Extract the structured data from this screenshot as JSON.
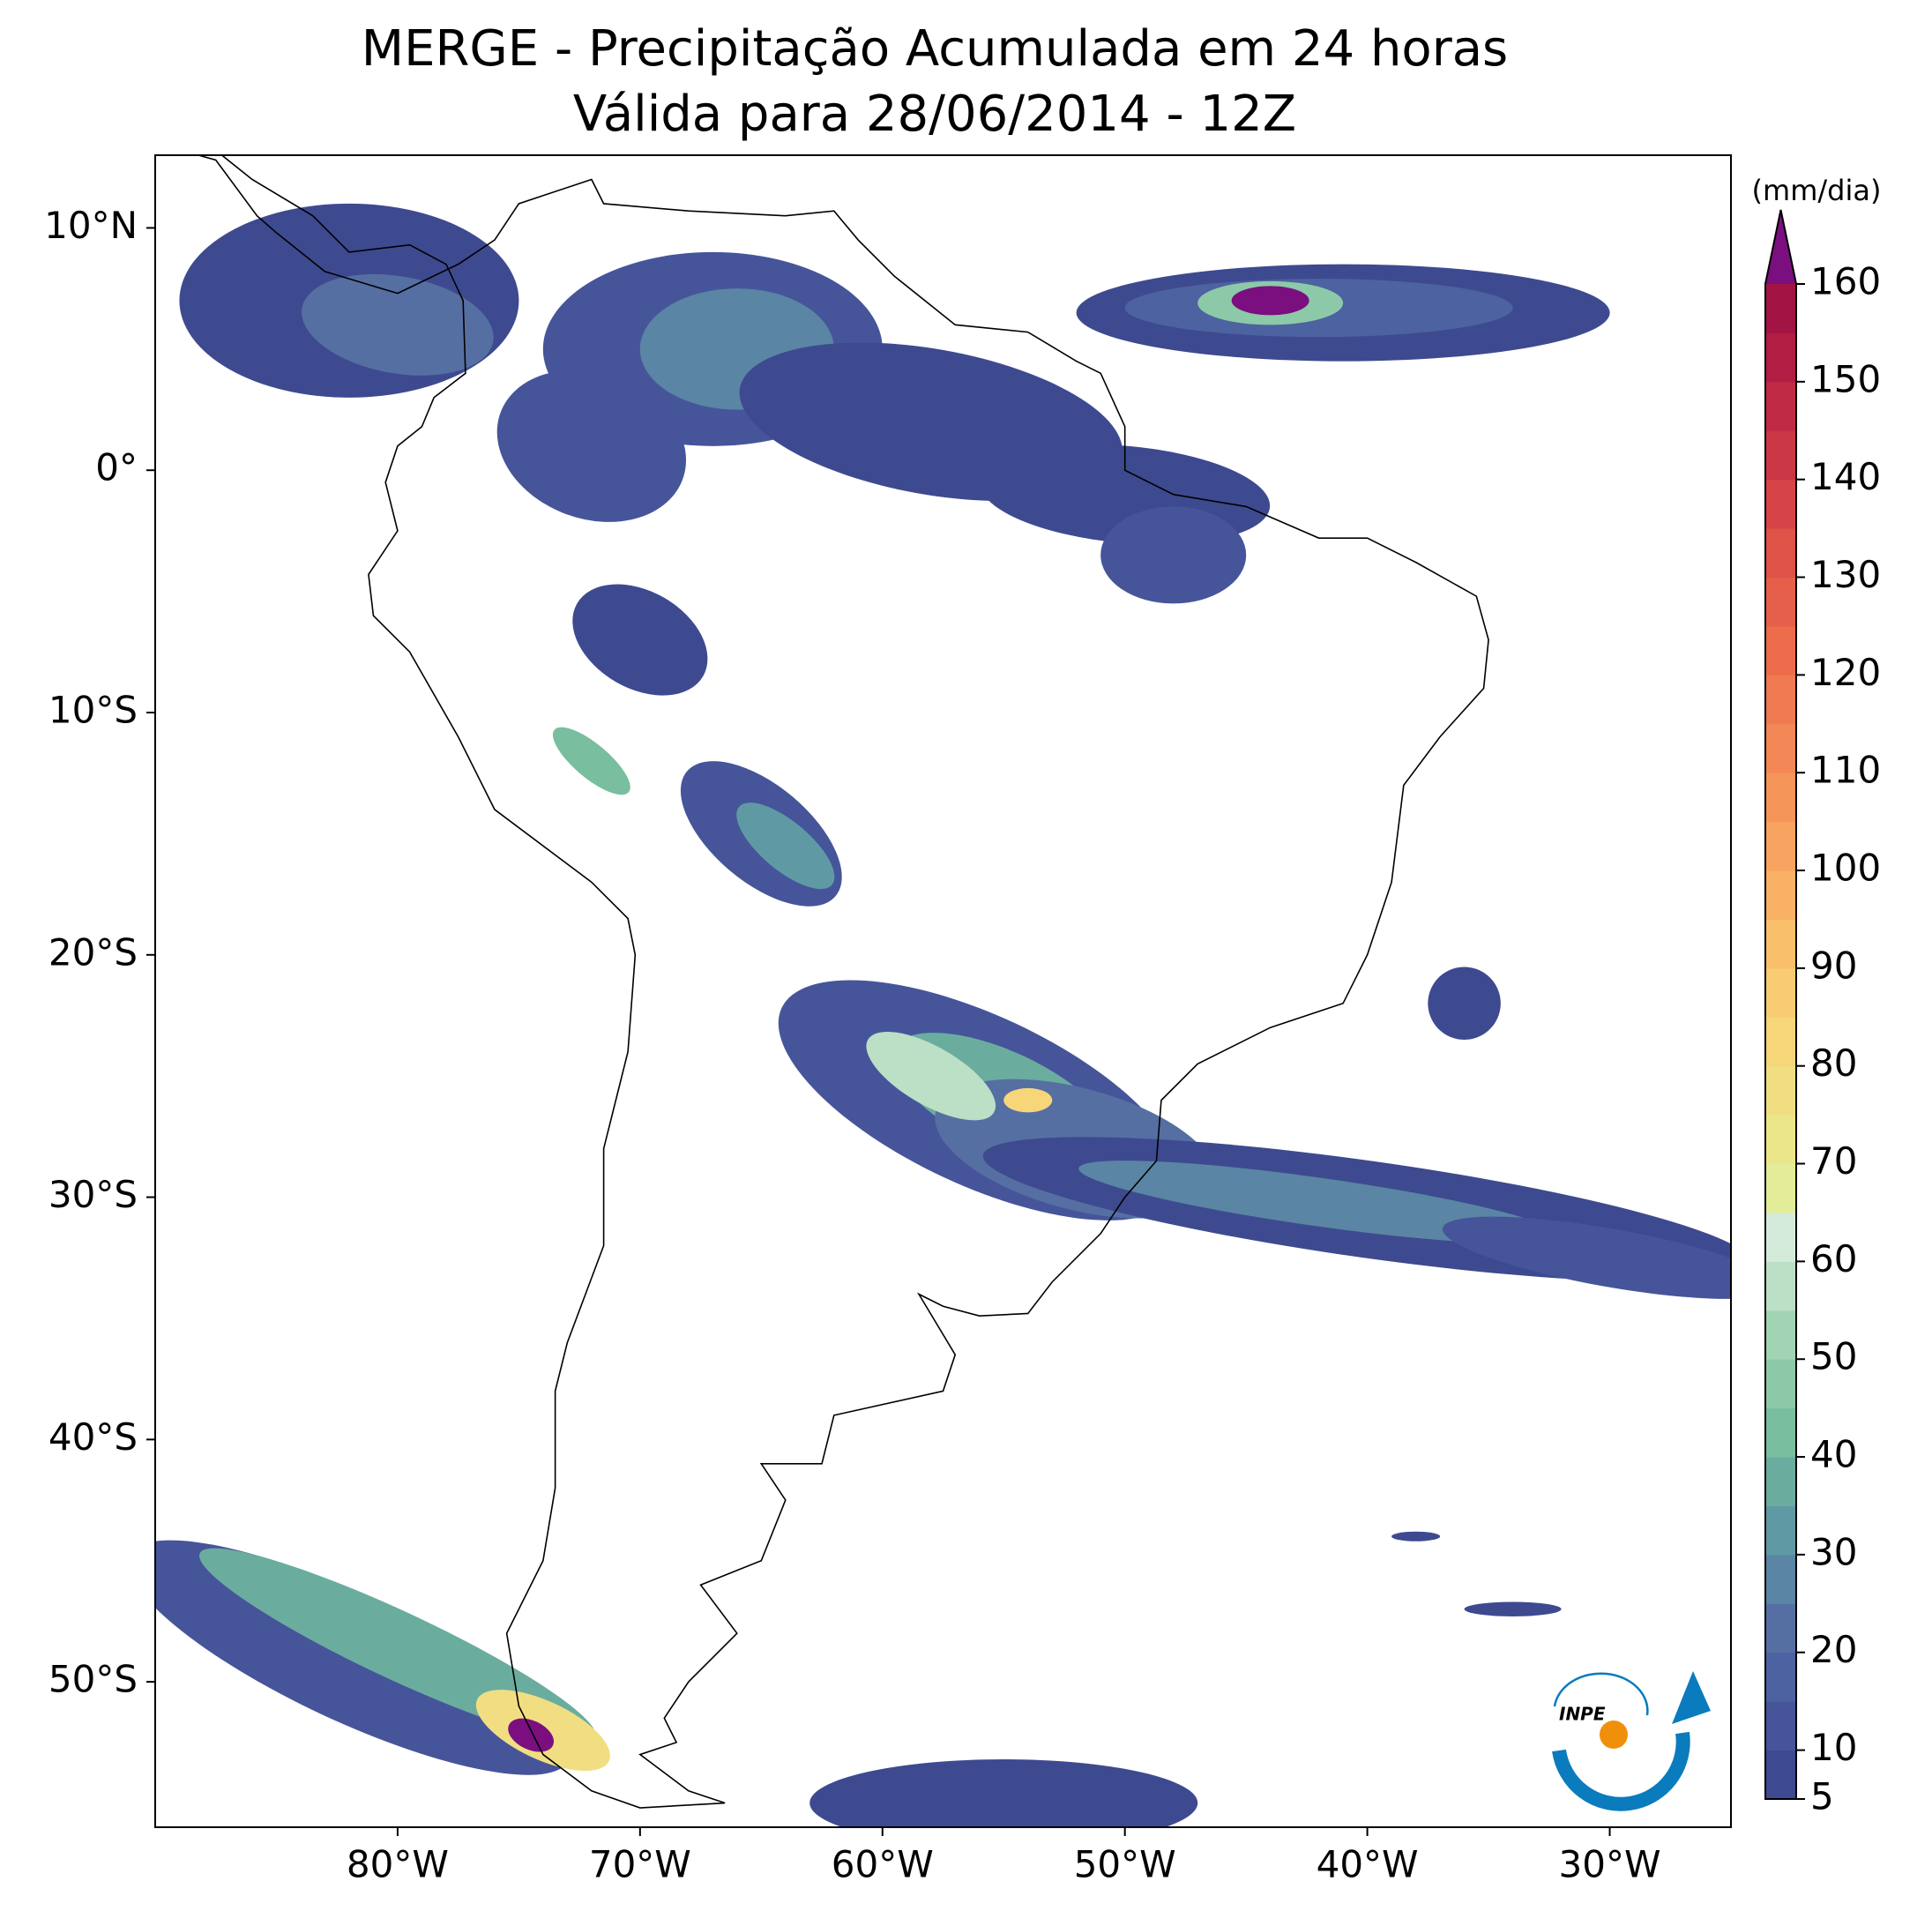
{
  "chart_data": {
    "type": "map",
    "title": "MERGE - Precipitação Acumulada em 24 horas",
    "subtitle": "Válida para 28/06/2014 - 12Z",
    "xlim": [
      -90,
      -25
    ],
    "ylim": [
      -56,
      13
    ],
    "xticks": [
      {
        "value": -80,
        "label": "80°W"
      },
      {
        "value": -70,
        "label": "70°W"
      },
      {
        "value": -60,
        "label": "60°W"
      },
      {
        "value": -50,
        "label": "50°W"
      },
      {
        "value": -40,
        "label": "40°W"
      },
      {
        "value": -30,
        "label": "30°W"
      }
    ],
    "yticks": [
      {
        "value": 10,
        "label": "10°N"
      },
      {
        "value": 0,
        "label": "0°"
      },
      {
        "value": -10,
        "label": "10°S"
      },
      {
        "value": -20,
        "label": "20°S"
      },
      {
        "value": -30,
        "label": "30°S"
      },
      {
        "value": -40,
        "label": "40°S"
      },
      {
        "value": -50,
        "label": "50°S"
      }
    ],
    "colorbar": {
      "label": "(mm/dia)",
      "range": [
        5,
        160
      ],
      "ticks": [
        5,
        10,
        20,
        30,
        40,
        50,
        60,
        70,
        80,
        90,
        100,
        110,
        120,
        130,
        140,
        150,
        160
      ],
      "colors": [
        "#3e4a8f",
        "#46559a",
        "#4d62a0",
        "#566fa3",
        "#5a85a4",
        "#5f9aa4",
        "#6aad9f",
        "#78be9f",
        "#8cc9a8",
        "#a2d3b3",
        "#bbe0c6",
        "#d4ebdc",
        "#e3ec98",
        "#ebe68a",
        "#f2de82",
        "#f7d67a",
        "#f9cb72",
        "#f9bf6a",
        "#f9b166",
        "#f8a35f",
        "#f6955a",
        "#f48756",
        "#f07a51",
        "#ec6c4c",
        "#e65f4a",
        "#de5248",
        "#d64447",
        "#cc3746",
        "#c02a45",
        "#b21d44",
        "#a21443"
      ],
      "extend_color": "#7b0f7f"
    },
    "logo_text": "INPE"
  }
}
